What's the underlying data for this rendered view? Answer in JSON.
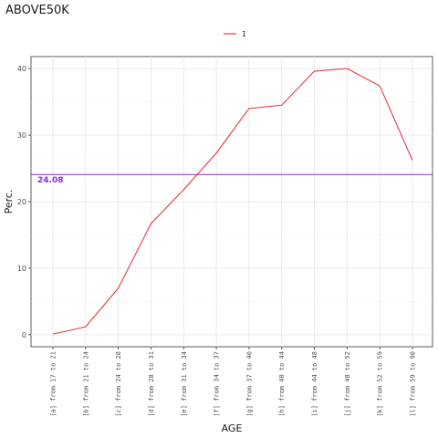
{
  "chart_data": {
    "type": "line",
    "title": "ABOVE50K",
    "xlabel": "AGE",
    "ylabel": "Perc.",
    "categories": [
      "[a] from 17 to 21",
      "[b] from 21 to 24",
      "[c] from 24 to 28",
      "[d] from 28 to 31",
      "[e] from 31 to 34",
      "[f] from 34 to 37",
      "[g] from 37 to 40",
      "[h] from 40 to 44",
      "[i] from 44 to 48",
      "[j] from 48 to 52",
      "[k] from 52 to 59",
      "[l] from 59 to 90"
    ],
    "series": [
      {
        "name": "1",
        "color": "#e8383d",
        "values": [
          0.1,
          1.2,
          7.0,
          16.7,
          21.8,
          27.3,
          34.0,
          34.5,
          39.6,
          40.0,
          37.4,
          26.2
        ]
      }
    ],
    "reference_line": {
      "value": 24.08,
      "label": "24.08",
      "color": "#8a2be2"
    },
    "yticks": [
      0,
      10,
      20,
      30,
      40
    ],
    "ylim": [
      -1.8,
      41.8
    ],
    "grid": true,
    "legend_position": "top"
  }
}
